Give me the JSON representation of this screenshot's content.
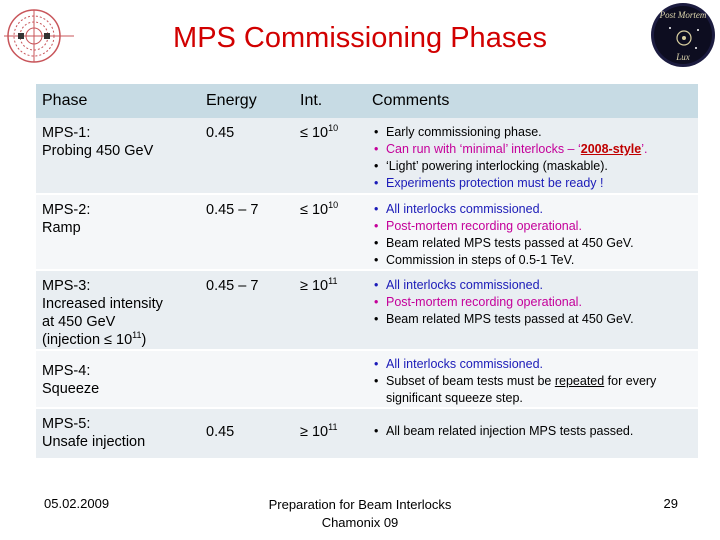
{
  "title": "MPS Commissioning Phases",
  "logos": {
    "left": "lhc-logo",
    "right_text": "Post Mortem Lux"
  },
  "table": {
    "headers": {
      "phase": "Phase",
      "energy": "Energy",
      "int": "Int.",
      "comments": "Comments"
    },
    "rows": [
      {
        "phase_line1": "MPS-1:",
        "phase_line2": "Probing 450 GeV",
        "energy": "0.45",
        "int_prefix": "≤ 10",
        "int_exp": "10",
        "comments": [
          "Early commissioning phase.",
          "Can run with ‘minimal’ interlocks – ‘",
          "2008-style",
          "’.",
          "‘Light’ powering interlocking (maskable).",
          "Experiments protection must be ready !"
        ]
      },
      {
        "phase_line1": "MPS-2:",
        "phase_line2": "Ramp",
        "energy": "0.45 – 7",
        "int_prefix": "≤ 10",
        "int_exp": "10",
        "comments": [
          "All interlocks commissioned.",
          "Post-mortem recording operational.",
          "Beam related MPS tests passed at 450 GeV.",
          "Commission in steps of 0.5-1 TeV."
        ]
      },
      {
        "phase_line1": "MPS-3:",
        "phase_line2": "Increased intensity",
        "phase_line3": "at 450 GeV",
        "phase_line4": "(injection ≤ 10",
        "phase_line4_exp": "11",
        "phase_line4_end": ")",
        "energy": "0.45 – 7",
        "int_prefix": "≥ 10",
        "int_exp": "11",
        "comments": [
          "All interlocks commissioned.",
          "Post-mortem recording operational.",
          "Beam related MPS tests passed at 450 GeV."
        ]
      },
      {
        "phase_line1": "MPS-4:",
        "phase_line2": "Squeeze",
        "energy": "",
        "int_prefix": "",
        "int_exp": "",
        "comments": [
          "All interlocks commissioned.",
          "Subset of beam tests must be ",
          "repeated",
          " for every significant squeeze step."
        ]
      },
      {
        "phase_line1": "MPS-5:",
        "phase_line2": "Unsafe injection",
        "energy": "0.45",
        "int_prefix": "≥ 10",
        "int_exp": "11",
        "comments": [
          "All beam related injection MPS tests passed."
        ]
      }
    ]
  },
  "footer": {
    "date": "05.02.2009",
    "center_line1": "Preparation for Beam Interlocks",
    "center_line2": "Chamonix 09",
    "page": "29"
  },
  "colors": {
    "title": "#d10000",
    "header_bg": "#c7dbe4",
    "comment_blue": "#1b1bb8",
    "comment_pink": "#c4009a",
    "style_red": "#c00000"
  }
}
